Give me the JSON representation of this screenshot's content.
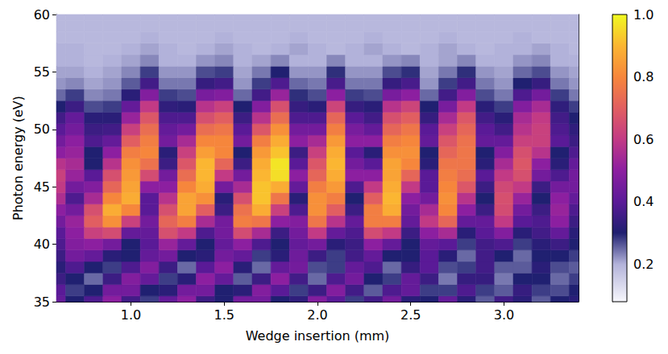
{
  "chart_data": {
    "type": "heatmap",
    "x_label": "Wedge insertion (mm)",
    "y_label": "Photon energy (eV)",
    "xlim": [
      0.6,
      3.4
    ],
    "ylim": [
      35,
      60
    ],
    "xticks": [
      {
        "value": 1,
        "label": "1.0"
      },
      1.5,
      {
        "value": 2,
        "label": "2.0"
      },
      2.5,
      {
        "value": 3,
        "label": "3.0"
      }
    ],
    "yticks": [
      35,
      40,
      45,
      50,
      55,
      60
    ],
    "grid": false,
    "color_range": [
      0.08,
      1
    ],
    "color_ticks": [
      0.2,
      0.4,
      0.6,
      0.8,
      {
        "value": 1,
        "label": "1.0"
      }
    ],
    "x": [
      0.6,
      0.7,
      0.8,
      0.9,
      1.0,
      1.1,
      1.2,
      1.3,
      1.4,
      1.5,
      1.6,
      1.7,
      1.8,
      1.9,
      2.0,
      2.1,
      2.2,
      2.3,
      2.4,
      2.5,
      2.6,
      2.7,
      2.8,
      2.9,
      3.0,
      3.1,
      3.2,
      3.3,
      3.4
    ],
    "y": [
      35,
      36,
      37,
      38,
      39,
      40,
      41,
      42,
      43,
      44,
      45,
      46,
      47,
      48,
      49,
      50,
      51,
      52,
      53,
      54,
      55,
      56,
      57,
      58,
      59,
      60
    ],
    "values": [
      [
        0.42,
        0.3,
        0.38,
        0.5,
        0.36,
        0.28,
        0.42,
        0.5,
        0.35,
        0.3,
        0.45,
        0.45,
        0.3,
        0.33,
        0.48,
        0.4,
        0.28,
        0.36,
        0.45,
        0.32,
        0.3,
        0.42,
        0.32,
        0.26,
        0.36,
        0.32,
        0.26,
        0.3,
        0.32
      ],
      [
        0.4,
        0.28,
        0.3,
        0.45,
        0.45,
        0.3,
        0.32,
        0.45,
        0.45,
        0.3,
        0.32,
        0.48,
        0.4,
        0.28,
        0.35,
        0.48,
        0.36,
        0.26,
        0.38,
        0.42,
        0.28,
        0.28,
        0.38,
        0.28,
        0.26,
        0.34,
        0.28,
        0.27,
        0.3
      ],
      [
        0.35,
        0.3,
        0.25,
        0.35,
        0.48,
        0.42,
        0.28,
        0.32,
        0.5,
        0.42,
        0.26,
        0.35,
        0.5,
        0.36,
        0.25,
        0.38,
        0.45,
        0.3,
        0.28,
        0.42,
        0.35,
        0.24,
        0.34,
        0.34,
        0.24,
        0.3,
        0.3,
        0.25,
        0.28
      ],
      [
        0.32,
        0.38,
        0.3,
        0.28,
        0.38,
        0.48,
        0.35,
        0.25,
        0.4,
        0.5,
        0.32,
        0.25,
        0.42,
        0.45,
        0.27,
        0.28,
        0.42,
        0.38,
        0.25,
        0.34,
        0.4,
        0.27,
        0.28,
        0.36,
        0.26,
        0.26,
        0.32,
        0.27,
        0.26
      ],
      [
        0.35,
        0.45,
        0.42,
        0.32,
        0.3,
        0.42,
        0.45,
        0.3,
        0.32,
        0.45,
        0.42,
        0.28,
        0.32,
        0.44,
        0.35,
        0.28,
        0.36,
        0.42,
        0.3,
        0.3,
        0.4,
        0.32,
        0.25,
        0.36,
        0.3,
        0.25,
        0.3,
        0.3,
        0.28
      ],
      [
        0.38,
        0.48,
        0.5,
        0.45,
        0.3,
        0.4,
        0.52,
        0.42,
        0.3,
        0.42,
        0.5,
        0.38,
        0.3,
        0.42,
        0.45,
        0.32,
        0.35,
        0.5,
        0.42,
        0.3,
        0.42,
        0.4,
        0.28,
        0.36,
        0.38,
        0.28,
        0.32,
        0.35,
        0.3
      ],
      [
        0.4,
        0.5,
        0.62,
        0.65,
        0.42,
        0.42,
        0.66,
        0.6,
        0.38,
        0.45,
        0.65,
        0.55,
        0.35,
        0.45,
        0.6,
        0.42,
        0.38,
        0.65,
        0.6,
        0.35,
        0.5,
        0.55,
        0.32,
        0.4,
        0.48,
        0.32,
        0.36,
        0.42,
        0.32
      ],
      [
        0.45,
        0.52,
        0.7,
        0.82,
        0.62,
        0.45,
        0.72,
        0.78,
        0.55,
        0.45,
        0.78,
        0.76,
        0.5,
        0.48,
        0.76,
        0.58,
        0.42,
        0.78,
        0.78,
        0.42,
        0.6,
        0.72,
        0.42,
        0.42,
        0.6,
        0.4,
        0.38,
        0.5,
        0.35
      ],
      [
        0.5,
        0.45,
        0.66,
        0.88,
        0.8,
        0.4,
        0.66,
        0.86,
        0.7,
        0.35,
        0.75,
        0.88,
        0.62,
        0.38,
        0.82,
        0.7,
        0.35,
        0.78,
        0.88,
        0.45,
        0.55,
        0.8,
        0.5,
        0.35,
        0.65,
        0.45,
        0.35,
        0.52,
        0.38
      ],
      [
        0.56,
        0.38,
        0.55,
        0.8,
        0.88,
        0.4,
        0.58,
        0.86,
        0.82,
        0.32,
        0.66,
        0.92,
        0.76,
        0.32,
        0.82,
        0.78,
        0.3,
        0.7,
        0.9,
        0.5,
        0.45,
        0.82,
        0.58,
        0.3,
        0.66,
        0.52,
        0.3,
        0.5,
        0.42
      ],
      [
        0.6,
        0.45,
        0.48,
        0.72,
        0.86,
        0.5,
        0.5,
        0.8,
        0.88,
        0.45,
        0.55,
        0.92,
        0.88,
        0.42,
        0.78,
        0.84,
        0.38,
        0.6,
        0.88,
        0.6,
        0.4,
        0.8,
        0.68,
        0.35,
        0.64,
        0.6,
        0.35,
        0.45,
        0.45
      ],
      [
        0.62,
        0.52,
        0.4,
        0.66,
        0.84,
        0.65,
        0.45,
        0.74,
        0.9,
        0.6,
        0.45,
        0.9,
        0.96,
        0.5,
        0.72,
        0.88,
        0.5,
        0.5,
        0.86,
        0.72,
        0.4,
        0.78,
        0.74,
        0.4,
        0.6,
        0.66,
        0.45,
        0.38,
        0.45
      ],
      [
        0.58,
        0.55,
        0.3,
        0.58,
        0.82,
        0.75,
        0.35,
        0.68,
        0.9,
        0.72,
        0.35,
        0.88,
        0.97,
        0.4,
        0.68,
        0.9,
        0.45,
        0.4,
        0.86,
        0.8,
        0.32,
        0.76,
        0.76,
        0.32,
        0.55,
        0.68,
        0.5,
        0.32,
        0.42
      ],
      [
        0.5,
        0.52,
        0.3,
        0.5,
        0.78,
        0.8,
        0.32,
        0.62,
        0.85,
        0.8,
        0.3,
        0.84,
        0.92,
        0.35,
        0.62,
        0.88,
        0.4,
        0.32,
        0.82,
        0.82,
        0.3,
        0.72,
        0.76,
        0.3,
        0.48,
        0.66,
        0.58,
        0.3,
        0.38
      ],
      [
        0.45,
        0.5,
        0.38,
        0.42,
        0.7,
        0.78,
        0.45,
        0.55,
        0.8,
        0.8,
        0.45,
        0.78,
        0.88,
        0.5,
        0.55,
        0.84,
        0.5,
        0.5,
        0.78,
        0.8,
        0.42,
        0.68,
        0.75,
        0.42,
        0.42,
        0.62,
        0.62,
        0.4,
        0.35
      ],
      [
        0.4,
        0.45,
        0.35,
        0.36,
        0.62,
        0.74,
        0.42,
        0.45,
        0.74,
        0.76,
        0.4,
        0.68,
        0.82,
        0.45,
        0.45,
        0.78,
        0.46,
        0.42,
        0.72,
        0.76,
        0.4,
        0.62,
        0.72,
        0.4,
        0.36,
        0.58,
        0.62,
        0.38,
        0.33
      ],
      [
        0.36,
        0.42,
        0.32,
        0.32,
        0.52,
        0.68,
        0.38,
        0.38,
        0.66,
        0.7,
        0.35,
        0.58,
        0.74,
        0.38,
        0.38,
        0.72,
        0.4,
        0.36,
        0.66,
        0.7,
        0.34,
        0.55,
        0.68,
        0.36,
        0.32,
        0.55,
        0.6,
        0.36,
        0.3
      ],
      [
        0.3,
        0.35,
        0.27,
        0.28,
        0.42,
        0.6,
        0.33,
        0.32,
        0.58,
        0.62,
        0.3,
        0.48,
        0.66,
        0.34,
        0.32,
        0.63,
        0.34,
        0.32,
        0.58,
        0.63,
        0.3,
        0.46,
        0.6,
        0.32,
        0.28,
        0.48,
        0.55,
        0.33,
        0.28
      ],
      [
        0.25,
        0.28,
        0.23,
        0.24,
        0.32,
        0.48,
        0.28,
        0.27,
        0.46,
        0.48,
        0.25,
        0.36,
        0.52,
        0.29,
        0.27,
        0.5,
        0.28,
        0.27,
        0.46,
        0.5,
        0.25,
        0.36,
        0.48,
        0.27,
        0.24,
        0.38,
        0.45,
        0.28,
        0.24
      ],
      [
        0.22,
        0.23,
        0.21,
        0.22,
        0.26,
        0.36,
        0.24,
        0.24,
        0.34,
        0.36,
        0.22,
        0.28,
        0.38,
        0.25,
        0.24,
        0.37,
        0.24,
        0.24,
        0.34,
        0.37,
        0.22,
        0.28,
        0.36,
        0.24,
        0.22,
        0.3,
        0.34,
        0.24,
        0.22
      ],
      [
        0.21,
        0.21,
        0.2,
        0.21,
        0.23,
        0.28,
        0.22,
        0.22,
        0.27,
        0.28,
        0.21,
        0.24,
        0.3,
        0.22,
        0.22,
        0.29,
        0.22,
        0.22,
        0.27,
        0.29,
        0.21,
        0.24,
        0.29,
        0.22,
        0.21,
        0.25,
        0.27,
        0.22,
        0.21
      ],
      [
        0.2,
        0.2,
        0.19,
        0.2,
        0.21,
        0.23,
        0.2,
        0.2,
        0.22,
        0.23,
        0.2,
        0.21,
        0.23,
        0.2,
        0.2,
        0.23,
        0.2,
        0.2,
        0.22,
        0.23,
        0.2,
        0.21,
        0.23,
        0.2,
        0.2,
        0.22,
        0.23,
        0.2,
        0.2
      ],
      [
        0.2,
        0.2,
        0.19,
        0.19,
        0.2,
        0.21,
        0.2,
        0.19,
        0.2,
        0.21,
        0.2,
        0.19,
        0.2,
        0.21,
        0.2,
        0.19,
        0.2,
        0.21,
        0.2,
        0.19,
        0.2,
        0.21,
        0.2,
        0.19,
        0.2,
        0.2,
        0.21,
        0.2,
        0.19
      ],
      [
        0.19,
        0.19,
        0.19,
        0.19,
        0.19,
        0.2,
        0.19,
        0.19,
        0.19,
        0.2,
        0.19,
        0.19,
        0.19,
        0.2,
        0.19,
        0.19,
        0.19,
        0.2,
        0.19,
        0.19,
        0.19,
        0.2,
        0.19,
        0.19,
        0.19,
        0.2,
        0.19,
        0.19,
        0.19
      ],
      [
        0.19,
        0.19,
        0.19,
        0.19,
        0.19,
        0.19,
        0.19,
        0.19,
        0.19,
        0.19,
        0.19,
        0.19,
        0.19,
        0.19,
        0.19,
        0.19,
        0.19,
        0.19,
        0.19,
        0.19,
        0.19,
        0.19,
        0.19,
        0.19,
        0.19,
        0.19,
        0.19,
        0.19,
        0.19
      ],
      [
        0.19,
        0.19,
        0.19,
        0.19,
        0.19,
        0.19,
        0.19,
        0.19,
        0.19,
        0.19,
        0.19,
        0.19,
        0.19,
        0.19,
        0.19,
        0.19,
        0.19,
        0.19,
        0.19,
        0.19,
        0.19,
        0.19,
        0.19,
        0.19,
        0.19,
        0.19,
        0.19,
        0.19,
        0.19
      ]
    ]
  }
}
